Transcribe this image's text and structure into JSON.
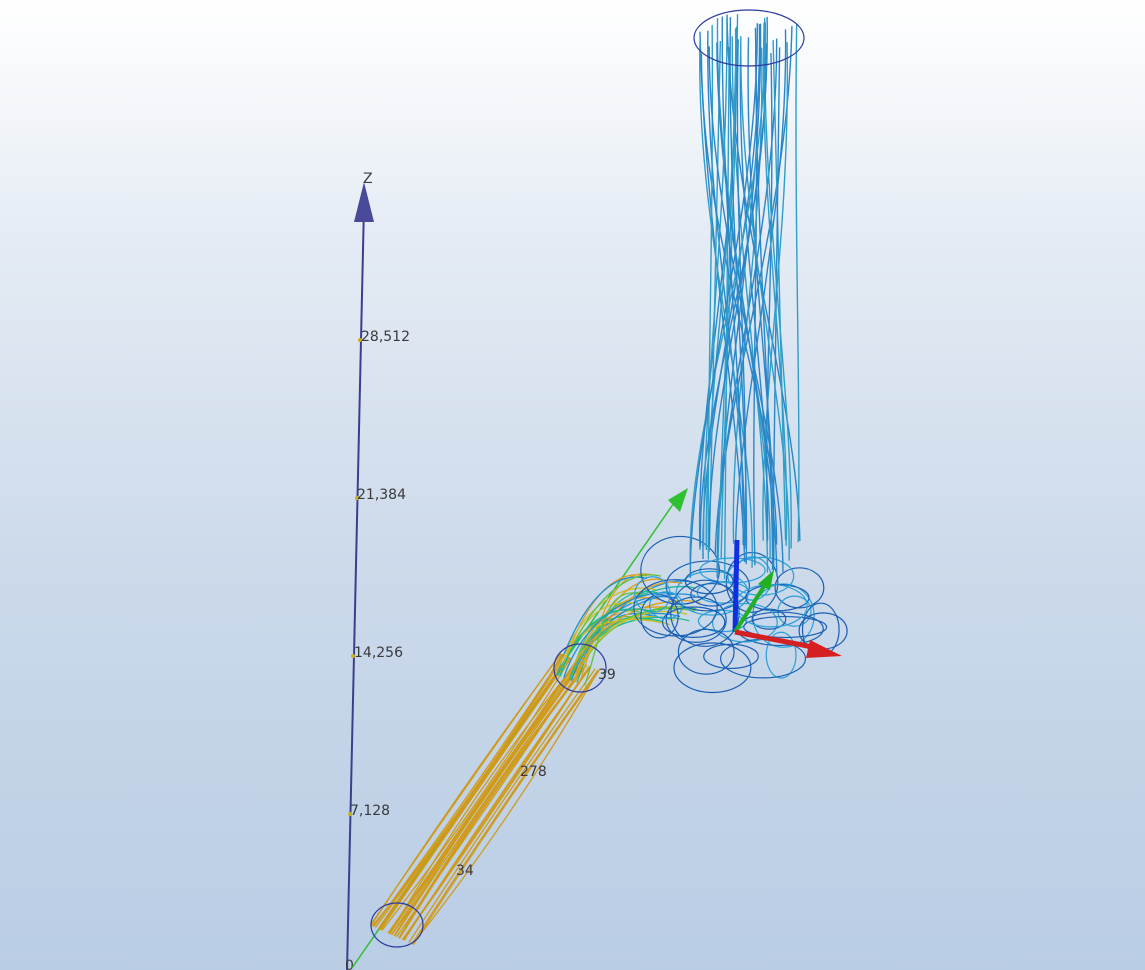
{
  "viewport": {
    "background_top": "#ffffff",
    "background_bottom": "#b9cde5"
  },
  "z_axis": {
    "label": "Z",
    "color": "#3d3d8f",
    "ticks": [
      "28,512",
      "21,384",
      "14,256",
      "7,128",
      "0"
    ]
  },
  "pipe_labels": [
    "39",
    "278",
    "34"
  ],
  "streamlines": {
    "pipe_color": "#d09a1a",
    "bend_colors": [
      "#e0a020",
      "#c8c020",
      "#60c040",
      "#20b890",
      "#2090d0"
    ],
    "swirl_color": "#1a5fb4",
    "column_color": "#2a86c8"
  },
  "triad": {
    "x_color": "#d42020",
    "y_color": "#20b020",
    "z_color": "#1030e0"
  }
}
